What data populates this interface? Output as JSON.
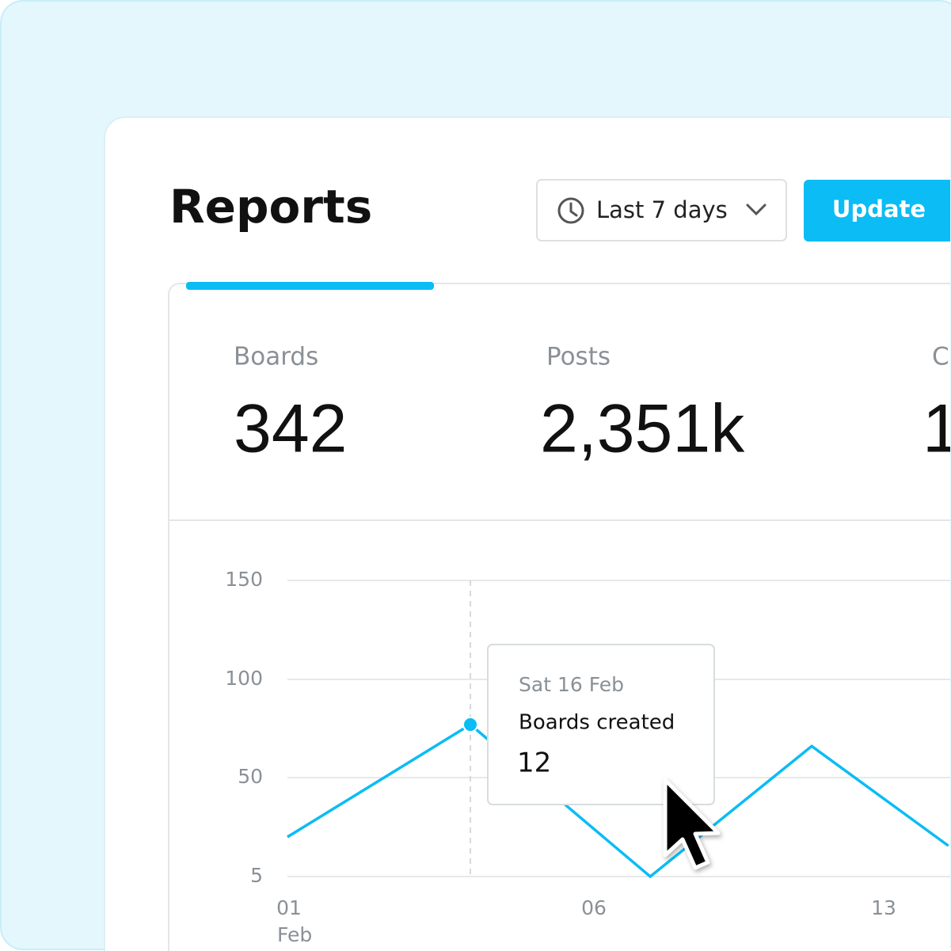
{
  "header": {
    "title": "Reports",
    "date_range": "Last 7 days",
    "button": "Update"
  },
  "stats": [
    {
      "label": "Boards",
      "value": "342"
    },
    {
      "label": "Posts",
      "value": "2,351k"
    },
    {
      "label": "C",
      "value": "1"
    }
  ],
  "chart_data": {
    "type": "line",
    "x": [
      1,
      4,
      7.4,
      11.3,
      14.6
    ],
    "xlim": [
      1,
      14.6
    ],
    "xticks": [
      {
        "value": 1,
        "label": "01"
      },
      {
        "value": 6,
        "label": "06"
      },
      {
        "value": 13,
        "label": "13"
      }
    ],
    "x_sublabel": "Feb",
    "ylim": [
      5,
      150
    ],
    "yticks": [
      5,
      50,
      100,
      150
    ],
    "grid": true,
    "series": [
      {
        "name": "Boards created",
        "color": "#0bbcf5",
        "values": [
          23,
          77,
          5,
          66,
          19
        ]
      }
    ],
    "tooltip": {
      "date": "Sat 16 Feb",
      "value": 12
    }
  }
}
